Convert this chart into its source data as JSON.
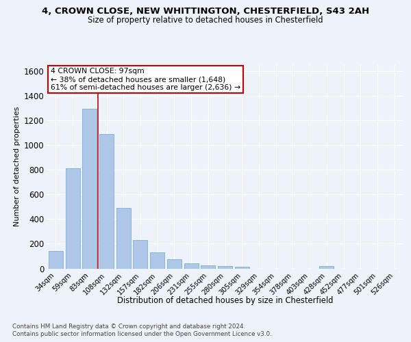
{
  "title_line1": "4, CROWN CLOSE, NEW WHITTINGTON, CHESTERFIELD, S43 2AH",
  "title_line2": "Size of property relative to detached houses in Chesterfield",
  "xlabel": "Distribution of detached houses by size in Chesterfield",
  "ylabel": "Number of detached properties",
  "categories": [
    "34sqm",
    "59sqm",
    "83sqm",
    "108sqm",
    "132sqm",
    "157sqm",
    "182sqm",
    "206sqm",
    "231sqm",
    "255sqm",
    "280sqm",
    "305sqm",
    "329sqm",
    "354sqm",
    "378sqm",
    "403sqm",
    "428sqm",
    "452sqm",
    "477sqm",
    "501sqm",
    "526sqm"
  ],
  "values": [
    140,
    810,
    1295,
    1090,
    490,
    230,
    133,
    75,
    43,
    25,
    18,
    15,
    0,
    0,
    0,
    0,
    20,
    0,
    0,
    0,
    0
  ],
  "bar_color": "#aec6e8",
  "bar_edge_color": "#7bafd4",
  "annotation_text1": "4 CROWN CLOSE: 97sqm",
  "annotation_text2": "← 38% of detached houses are smaller (1,648)",
  "annotation_text3": "61% of semi-detached houses are larger (2,636) →",
  "red_line_x": 2.5,
  "ylim": [
    0,
    1650
  ],
  "yticks": [
    0,
    200,
    400,
    600,
    800,
    1000,
    1200,
    1400,
    1600
  ],
  "footer_line1": "Contains HM Land Registry data © Crown copyright and database right 2024.",
  "footer_line2": "Contains public sector information licensed under the Open Government Licence v3.0.",
  "bg_color": "#eef2fa",
  "grid_color": "#ffffff",
  "annotation_box_color": "#ffffff",
  "annotation_box_edge": "#cc0000"
}
